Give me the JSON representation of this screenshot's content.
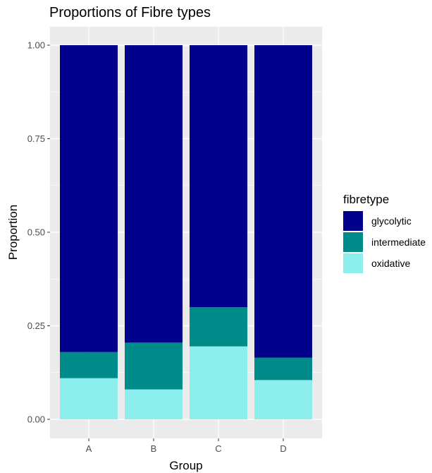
{
  "chart_data": {
    "type": "bar",
    "stacked": true,
    "title": "Proportions of Fibre types",
    "xlabel": "Group",
    "ylabel": "Proportion",
    "categories": [
      "A",
      "B",
      "C",
      "D"
    ],
    "ylim": [
      0,
      1
    ],
    "yticks": [
      "0.00",
      "0.25",
      "0.50",
      "0.75",
      "1.00"
    ],
    "legend_title": "fibretype",
    "legend_position": "right",
    "grid": true,
    "series": [
      {
        "name": "oxidative",
        "color": "#8DEEEE",
        "values": [
          0.11,
          0.08,
          0.195,
          0.105
        ]
      },
      {
        "name": "intermediate",
        "color": "#008B8B",
        "values": [
          0.07,
          0.125,
          0.105,
          0.06
        ]
      },
      {
        "name": "glycolytic",
        "color": "#00008B",
        "values": [
          0.82,
          0.795,
          0.7,
          0.835
        ]
      }
    ],
    "legend_order": [
      "glycolytic",
      "intermediate",
      "oxidative"
    ]
  }
}
